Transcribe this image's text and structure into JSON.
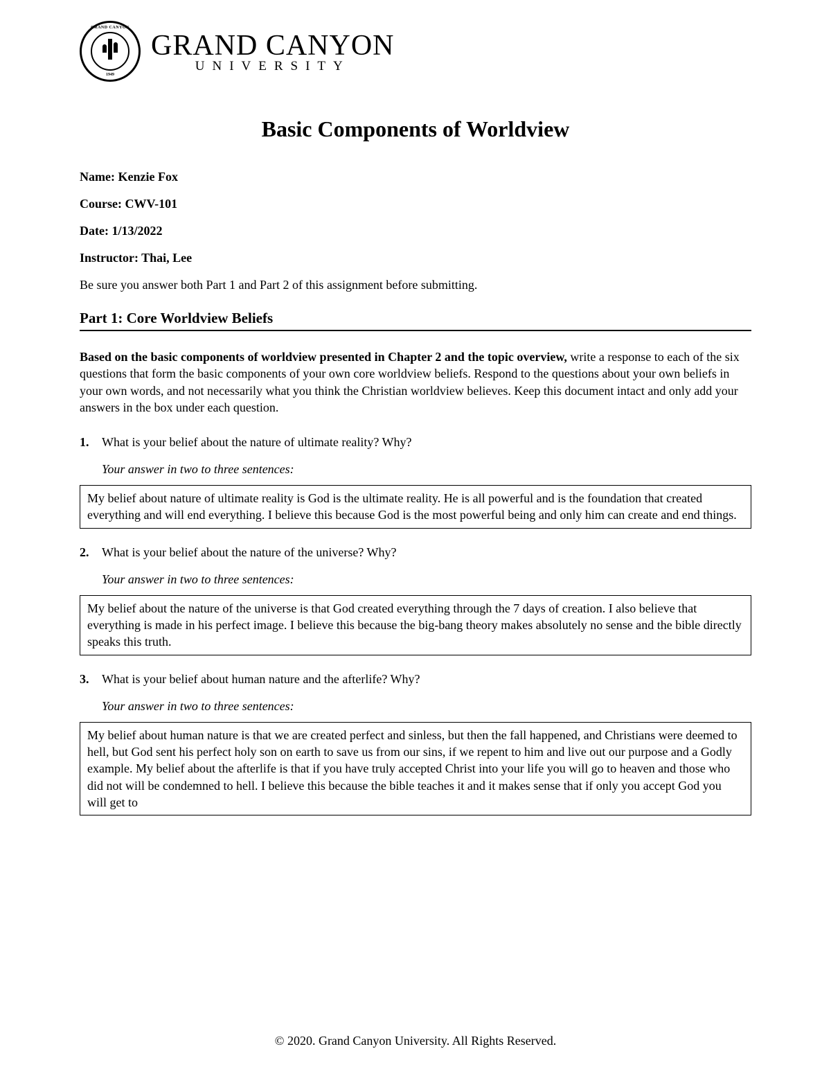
{
  "header": {
    "university_main": "GRAND CANYON",
    "university_sub": "UNIVERSITY",
    "seal_top_text": "GRAND CANYON",
    "seal_bottom_text": "1949"
  },
  "document_title": "Basic Components of Worldview",
  "meta": {
    "name_label": "Name: ",
    "name_value": "Kenzie Fox",
    "course_label": "Course: ",
    "course_value": "CWV-101",
    "date_label": "Date: ",
    "date_value": "1/13/2022",
    "instructor_label": "Instructor: ",
    "instructor_value": "Thai, Lee"
  },
  "instructions": "Be sure you answer both Part 1 and Part 2 of this assignment before submitting.",
  "part_heading": "Part 1: Core Worldview Beliefs",
  "intro": {
    "bold_text": "Based on the basic components of worldview presented in Chapter 2 and the topic overview, ",
    "normal_text": "write a response to each of the six questions that form the basic components of your own core worldview beliefs. Respond to the questions about your own beliefs in your own words, and not necessarily what you think the Christian worldview believes. Keep this document intact and only add your answers in the box under each question."
  },
  "answer_prompt": "Your answer in two to three sentences:",
  "questions": [
    {
      "number": "1.",
      "text": "What is your belief about the nature of ultimate reality? Why?",
      "answer": "My belief about nature of ultimate reality is God is the ultimate reality. He is all powerful and is the foundation that created everything and will end everything. I believe this because God is the most powerful being and only him can create and end things."
    },
    {
      "number": "2.",
      "text": "What is your belief about the nature of the universe? Why?",
      "answer": "My belief about the nature of the universe is that God created everything through the 7 days of creation. I also believe that everything is made in his perfect image. I believe this because the big-bang theory makes absolutely no sense and the bible directly speaks this truth."
    },
    {
      "number": "3.",
      "text": "What is your belief about human nature and the afterlife? Why?",
      "answer": "My belief about human nature is that we are created perfect and sinless, but then the fall happened, and Christians were deemed to hell, but God sent his perfect holy son on earth to save us from our sins, if we repent to him and live out our purpose and a Godly example. My belief about the afterlife is that if you have truly accepted Christ into your life you will go to heaven and those who did not will be condemned to hell. I believe this because the bible teaches it and it makes sense that if only you accept God you will get to"
    }
  ],
  "footer": "© 2020. Grand Canyon University. All Rights Reserved."
}
